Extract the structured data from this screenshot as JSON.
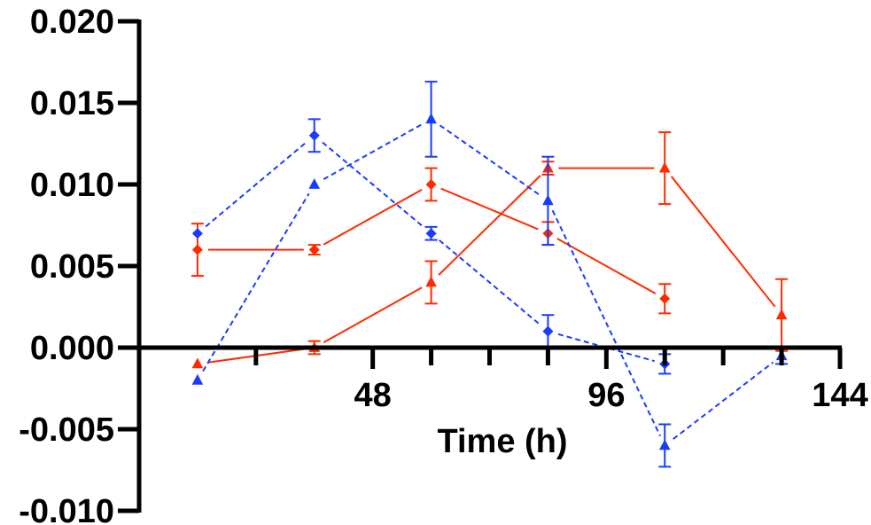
{
  "chart_data": {
    "type": "line",
    "title": "",
    "xlabel": "Time (h)",
    "ylabel": "",
    "xlim": [
      0,
      144
    ],
    "ylim": [
      -0.01,
      0.02
    ],
    "x_ticks": [
      {
        "value": 48,
        "label": "48"
      },
      {
        "value": 96,
        "label": "96"
      },
      {
        "value": 144,
        "label": "144"
      }
    ],
    "x_minor_ticks": [
      0,
      24,
      60,
      72,
      84,
      108,
      120,
      132
    ],
    "y_ticks": [
      {
        "value": 0.02,
        "label": "0.020"
      },
      {
        "value": 0.015,
        "label": "0.015"
      },
      {
        "value": 0.01,
        "label": "0.010"
      },
      {
        "value": 0.005,
        "label": "0.005"
      },
      {
        "value": 0.0,
        "label": "0.000"
      },
      {
        "value": -0.005,
        "label": "-0.005"
      },
      {
        "value": -0.01,
        "label": "-0.010"
      }
    ],
    "series": [
      {
        "color": "#ff2a00",
        "line": "solid",
        "marker": "diamond",
        "x": [
          12,
          36,
          60,
          84,
          108
        ],
        "y": [
          0.006,
          0.006,
          0.01,
          0.007,
          0.003
        ],
        "err": [
          0.0016,
          0.0003,
          0.001,
          0.0007,
          0.0009
        ]
      },
      {
        "color": "#ff2a00",
        "line": "solid",
        "marker": "triangle",
        "x": [
          12,
          36,
          60,
          84,
          108,
          132
        ],
        "y": [
          -0.001,
          0.0,
          0.004,
          0.011,
          0.011,
          0.002
        ],
        "err": [
          0.0,
          0.0004,
          0.0013,
          0.0004,
          0.0022,
          0.0022
        ]
      },
      {
        "color": "#1a3cff",
        "line": "dashed",
        "marker": "diamond",
        "x": [
          12,
          36,
          60,
          84,
          108
        ],
        "y": [
          0.007,
          0.013,
          0.007,
          0.001,
          -0.001
        ],
        "err": [
          0.0,
          0.001,
          0.0004,
          0.001,
          0.0006
        ]
      },
      {
        "color": "#1a3cff",
        "line": "dashed",
        "marker": "triangle",
        "x": [
          12,
          36,
          60,
          84,
          108,
          132
        ],
        "y": [
          -0.002,
          0.01,
          0.014,
          0.009,
          -0.006,
          -0.0005
        ],
        "err": [
          0.0,
          0.0,
          0.0023,
          0.0027,
          0.0013,
          0.0005
        ]
      }
    ]
  }
}
